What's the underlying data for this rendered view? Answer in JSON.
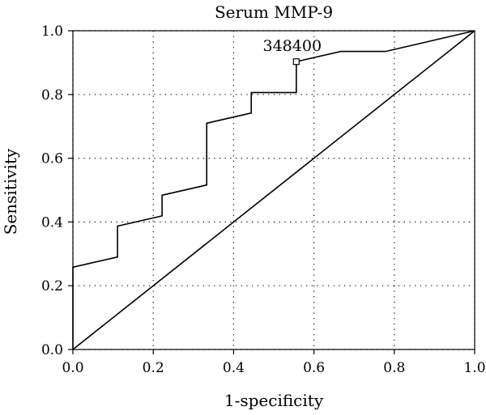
{
  "chart_data": {
    "type": "line",
    "title": "Serum MMP-9",
    "xlabel": "1-specificity",
    "ylabel": "Sensitivity",
    "xlim": [
      0,
      1
    ],
    "ylim": [
      0,
      1
    ],
    "grid": true,
    "xticks": [
      0.0,
      0.2,
      0.4,
      0.6,
      0.8,
      1.0
    ],
    "yticks": [
      0.0,
      0.2,
      0.4,
      0.6,
      0.8,
      1.0
    ],
    "xtick_labels": [
      "0.0",
      "0.2",
      "0.4",
      "0.6",
      "0.8",
      "1.0"
    ],
    "ytick_labels": [
      "0.0",
      "0.2",
      "0.4",
      "0.6",
      "0.8",
      "1.0"
    ],
    "series": [
      {
        "points": [
          [
            0.0,
            0.0
          ],
          [
            0.0,
            0.258
          ],
          [
            0.111,
            0.29
          ],
          [
            0.111,
            0.387
          ],
          [
            0.222,
            0.419
          ],
          [
            0.222,
            0.484
          ],
          [
            0.333,
            0.516
          ],
          [
            0.333,
            0.71
          ],
          [
            0.444,
            0.742
          ],
          [
            0.444,
            0.806
          ],
          [
            0.556,
            0.806
          ],
          [
            0.556,
            0.903
          ],
          [
            0.667,
            0.935
          ],
          [
            0.778,
            0.935
          ],
          [
            1.0,
            1.0
          ]
        ]
      }
    ],
    "reference_line": [
      [
        0.0,
        0.0
      ],
      [
        1.0,
        1.0
      ]
    ],
    "annotations": [
      {
        "text": "348400",
        "x": 0.556,
        "y": 0.903
      }
    ]
  }
}
